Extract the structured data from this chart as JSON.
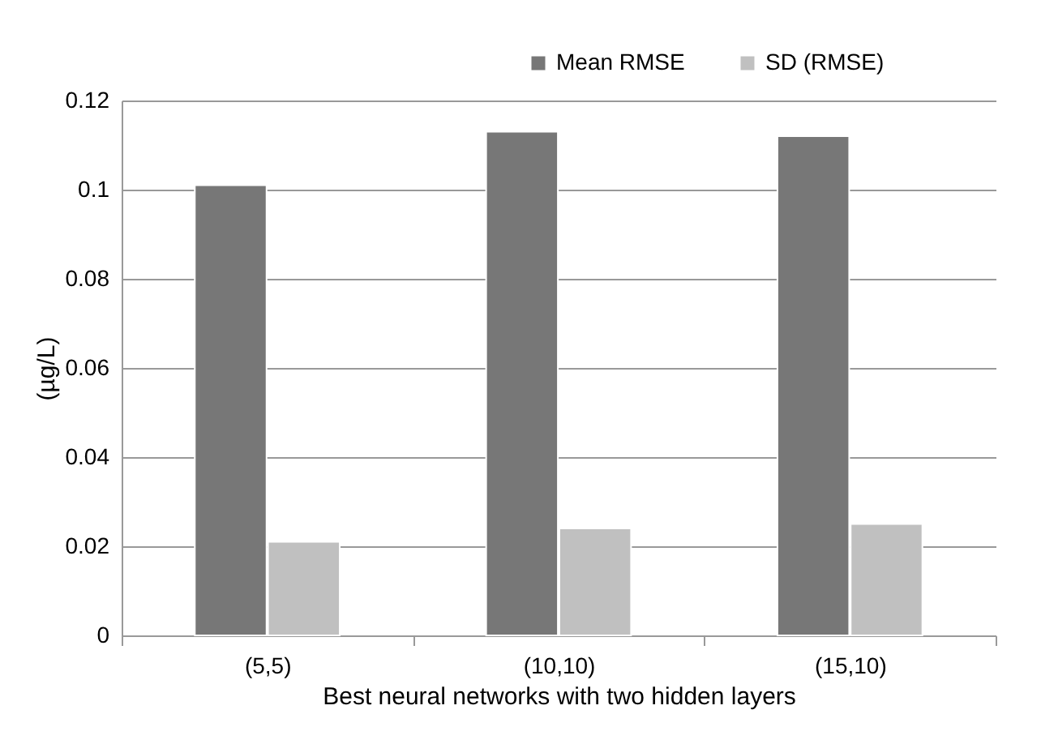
{
  "chart_data": {
    "type": "bar",
    "xlabel": "Best neural networks with two hidden layers",
    "ylabel": "(µg/L)",
    "categories": [
      "(5,5)",
      "(10,10)",
      "(15,10)"
    ],
    "series": [
      {
        "name": "Mean RMSE",
        "color": "#777777",
        "values": [
          0.101,
          0.113,
          0.112
        ]
      },
      {
        "name": "SD (RMSE)",
        "color": "#c0c0c0",
        "values": [
          0.021,
          0.024,
          0.025
        ]
      }
    ],
    "ylim": [
      0,
      0.12
    ],
    "yticks": [
      0,
      0.02,
      0.04,
      0.06,
      0.08,
      0.1,
      0.12
    ],
    "grid": "y",
    "legend": "top right"
  }
}
